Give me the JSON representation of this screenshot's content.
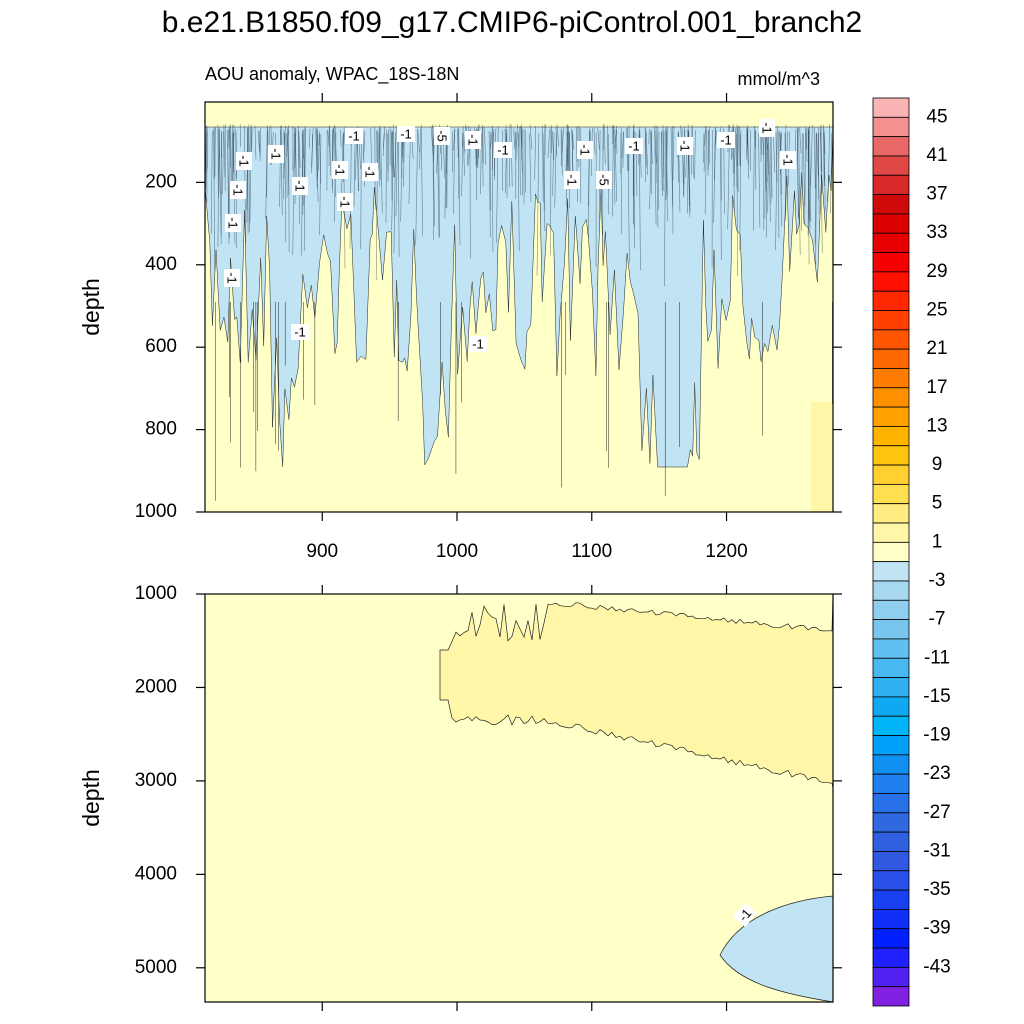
{
  "chart_data": {
    "type": "contour",
    "title": "b.e21.B1850.f09_g17.CMIP6-piControl.001_branch2",
    "subtitle_left": "AOU anomaly, WPAC_18S-18N",
    "subtitle_right": "mmol/m^3",
    "panels": [
      {
        "ylabel": "depth",
        "xlim": [
          813,
          1279
        ],
        "ylim": [
          5,
          1000
        ],
        "xticks": [
          900,
          1000,
          1100,
          1200
        ],
        "yticks": [
          200,
          400,
          600,
          800,
          1000
        ],
        "contour_labels": [
          "-1",
          "-1",
          "-1",
          "-1",
          "-5",
          "-1",
          "-1",
          "-1",
          "-1",
          "-1",
          "-1",
          "-1",
          "-1",
          "-1",
          "-1",
          "-1",
          "-1",
          "-1",
          "-5",
          "-1",
          "-1",
          "-1",
          "-1",
          "-1"
        ]
      },
      {
        "ylabel": "depth",
        "xlim": [
          813,
          1279
        ],
        "ylim": [
          1000,
          5366
        ],
        "xticks": [
          900,
          1000,
          1100,
          1200
        ],
        "yticks": [
          1000,
          2000,
          3000,
          4000,
          5000
        ],
        "contour_labels": [
          "-1"
        ]
      }
    ],
    "colorbar": {
      "range": [
        -47,
        47
      ],
      "colors": [
        "#fbb4b4",
        "#f39090",
        "#e86868",
        "#e04848",
        "#d82828",
        "#d00a0a",
        "#dc0000",
        "#e80000",
        "#f40000",
        "#ff1000",
        "#ff2800",
        "#ff4000",
        "#ff5400",
        "#ff6800",
        "#ff7c00",
        "#ff9000",
        "#ffa200",
        "#ffb400",
        "#ffc410",
        "#ffd030",
        "#ffe050",
        "#ffec80",
        "#fff6a8",
        "#ffffc8",
        "#c0e4f4",
        "#a8d8f0",
        "#90cef0",
        "#78c6ee",
        "#60c0f0",
        "#48b8f0",
        "#30b0f0",
        "#10a8f0",
        "#00b4f8",
        "#00a0f8",
        "#1090f0",
        "#2080f0",
        "#2870e8",
        "#3068e0",
        "#3060e0",
        "#3058e0",
        "#2850e8",
        "#1840f0",
        "#1030f8",
        "#0020ff",
        "#2020ff",
        "#5020f0",
        "#8020e0"
      ],
      "labels": [
        45,
        41,
        37,
        33,
        29,
        25,
        21,
        17,
        13,
        9,
        5,
        1,
        -3,
        -7,
        -11,
        -15,
        -19,
        -23,
        -27,
        -31,
        -35,
        -39,
        -43
      ]
    }
  }
}
